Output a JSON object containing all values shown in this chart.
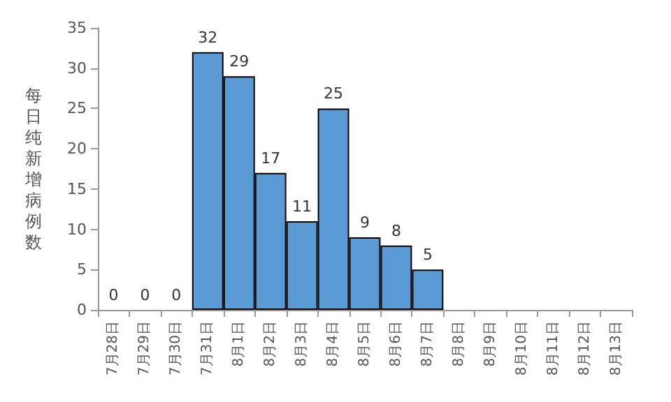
{
  "chart_data": {
    "type": "bar",
    "ylabel": "每日纯新增病例数",
    "categories": [
      "7月28日",
      "7月29日",
      "7月30日",
      "7月31日",
      "8月1日",
      "8月2日",
      "8月3日",
      "8月4日",
      "8月5日",
      "8月6日",
      "8月7日",
      "8月8日",
      "8月9日",
      "8月10日",
      "8月11日",
      "8月12日",
      "8月13日"
    ],
    "values": [
      0,
      0,
      0,
      32,
      29,
      17,
      11,
      25,
      9,
      8,
      5,
      null,
      null,
      null,
      null,
      null,
      null
    ],
    "color": "#5b9bd5",
    "ylim": [
      0,
      35
    ],
    "yticks": [
      0,
      5,
      10,
      15,
      20,
      25,
      30,
      35
    ],
    "grid": false,
    "data_labels": true
  }
}
